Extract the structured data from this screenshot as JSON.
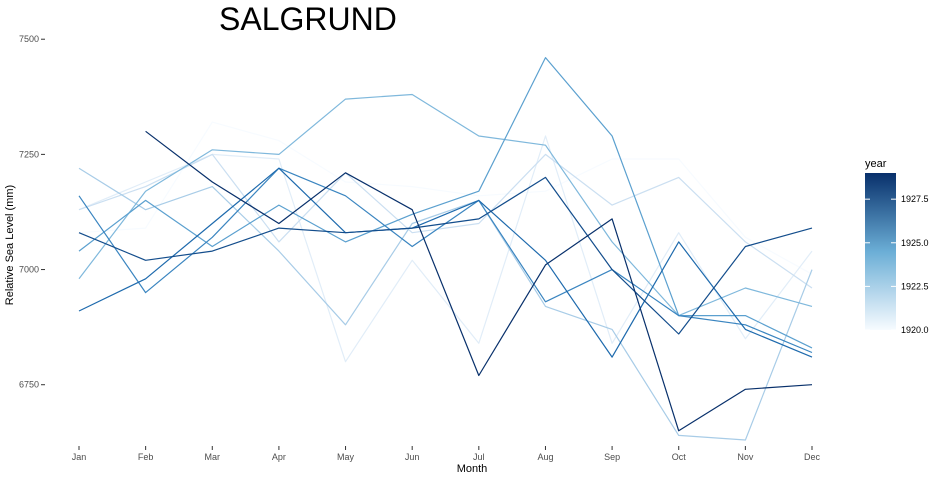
{
  "chart_data": {
    "type": "line",
    "title": "SALGRUND",
    "xlabel": "Month",
    "ylabel": "Relative Sea Level (mm)",
    "categories": [
      "Jan",
      "Feb",
      "Mar",
      "Apr",
      "May",
      "Jun",
      "Jul",
      "Aug",
      "Sep",
      "Oct",
      "Nov",
      "Dec"
    ],
    "ylim": [
      6630,
      7520
    ],
    "yticks": [
      {
        "value": 6750,
        "label": "6750"
      },
      {
        "value": 7000,
        "label": "7000"
      },
      {
        "value": 7250,
        "label": "7250"
      },
      {
        "value": 7500,
        "label": "7500"
      }
    ],
    "grid": false,
    "legend": {
      "title": "year",
      "position": "right",
      "min": 1920,
      "max": 1929,
      "color_low": "#f7fbff",
      "color_high": "#08306b",
      "ticks": [
        {
          "value": 1920,
          "label": "1920.0"
        },
        {
          "value": 1922.5,
          "label": "1922.5"
        },
        {
          "value": 1925,
          "label": "1925.0"
        },
        {
          "value": 1927.5,
          "label": "1927.5"
        }
      ]
    },
    "series": [
      {
        "year": 1920,
        "values": [
          7080,
          7090,
          7320,
          7280,
          7190,
          7180,
          7160,
          7170,
          7240,
          7240,
          7070,
          6990
        ]
      },
      {
        "year": 1921,
        "values": [
          7130,
          7190,
          7250,
          7240,
          6800,
          7020,
          6840,
          7290,
          6840,
          7080,
          6850,
          7040
        ]
      },
      {
        "year": 1922,
        "values": [
          7130,
          7180,
          7250,
          7060,
          7210,
          7080,
          7100,
          7250,
          7140,
          7200,
          7060,
          6960
        ]
      },
      {
        "year": 1923,
        "values": [
          7220,
          7130,
          7180,
          7040,
          6880,
          7100,
          7150,
          6920,
          6870,
          6640,
          6630,
          7000
        ]
      },
      {
        "year": 1924,
        "values": [
          6980,
          7170,
          7260,
          7250,
          7370,
          7380,
          7290,
          7270,
          7060,
          6900,
          6960,
          6920
        ]
      },
      {
        "year": 1925,
        "values": [
          7040,
          7150,
          7050,
          7140,
          7060,
          7120,
          7170,
          7460,
          7290,
          6900,
          6900,
          6830
        ]
      },
      {
        "year": 1926,
        "values": [
          7160,
          6950,
          7070,
          7220,
          7160,
          7050,
          7150,
          6930,
          7000,
          6900,
          6880,
          6820
        ]
      },
      {
        "year": 1927,
        "values": [
          6910,
          6980,
          7100,
          7220,
          7080,
          7090,
          7150,
          7020,
          6810,
          7060,
          6870,
          6810
        ]
      },
      {
        "year": 1928,
        "values": [
          7080,
          7020,
          7040,
          7090,
          7080,
          7090,
          7110,
          7200,
          7000,
          6860,
          7050,
          7090
        ]
      },
      {
        "year": 1929,
        "values": [
          null,
          7300,
          7190,
          7100,
          7210,
          7130,
          6770,
          7010,
          7110,
          6650,
          6740,
          6750
        ]
      }
    ]
  }
}
